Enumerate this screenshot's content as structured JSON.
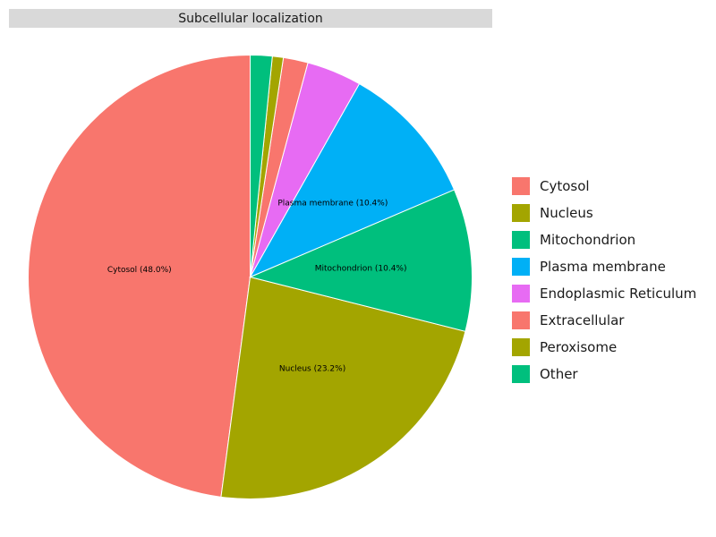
{
  "chart_data": {
    "type": "pie",
    "title": "Subcellular localization",
    "slices": [
      {
        "name": "Cytosol",
        "value": 48.0,
        "color": "#F8766D"
      },
      {
        "name": "Nucleus",
        "value": 23.2,
        "color": "#A3A500"
      },
      {
        "name": "Mitochondrion",
        "value": 10.4,
        "color": "#00BF7D"
      },
      {
        "name": "Plasma membrane",
        "value": 10.4,
        "color": "#00B0F6"
      },
      {
        "name": "Endoplasmic Reticulum",
        "value": 4.0,
        "color": "#E76BF3"
      },
      {
        "name": "Extracellular",
        "value": 1.8,
        "color": "#F8766D"
      },
      {
        "name": "Peroxisome",
        "value": 0.8,
        "color": "#A3A500"
      },
      {
        "name": "Other",
        "value": 1.6,
        "color": "#00BF7D"
      }
    ],
    "data_labels": [
      {
        "slice": "Cytosol",
        "text": "Cytosol (48.0%)"
      },
      {
        "slice": "Nucleus",
        "text": "Nucleus (23.2%)"
      },
      {
        "slice": "Mitochondrion",
        "text": "Mitochondrion (10.4%)"
      },
      {
        "slice": "Plasma membrane",
        "text": "Plasma membrane (10.4%)"
      }
    ],
    "legend_position": "right",
    "legend": [
      "Cytosol",
      "Nucleus",
      "Mitochondrion",
      "Plasma membrane",
      "Endoplasmic Reticulum",
      "Extracellular",
      "Peroxisome",
      "Other"
    ]
  }
}
